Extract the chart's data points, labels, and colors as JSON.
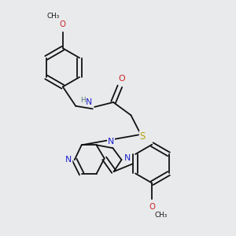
{
  "bg": "#e8eaec",
  "bc": "#111111",
  "nc": "#2020cc",
  "oc": "#cc2020",
  "sc": "#b8a000",
  "hc": "#507070",
  "lw": 1.3,
  "fs": 6.8,
  "figsize": [
    3.0,
    3.0
  ],
  "dpi": 100,
  "xlim": [
    0,
    10
  ],
  "ylim": [
    0,
    10
  ]
}
